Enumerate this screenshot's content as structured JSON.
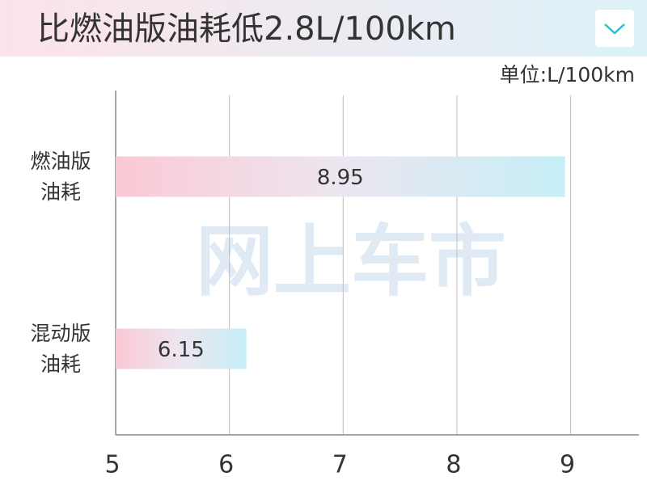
{
  "chart_data": {
    "type": "barh",
    "title": "比燃油版油耗低2.8L/100km",
    "unit_label": "单位:L/100km",
    "watermark": "网上车市",
    "categories": [
      "燃油版油耗",
      "混动版油耗"
    ],
    "values": [
      8.95,
      6.15
    ],
    "xlim": [
      5,
      9.6
    ],
    "xticks": [
      5,
      6,
      7,
      8,
      9
    ],
    "grid": true
  }
}
